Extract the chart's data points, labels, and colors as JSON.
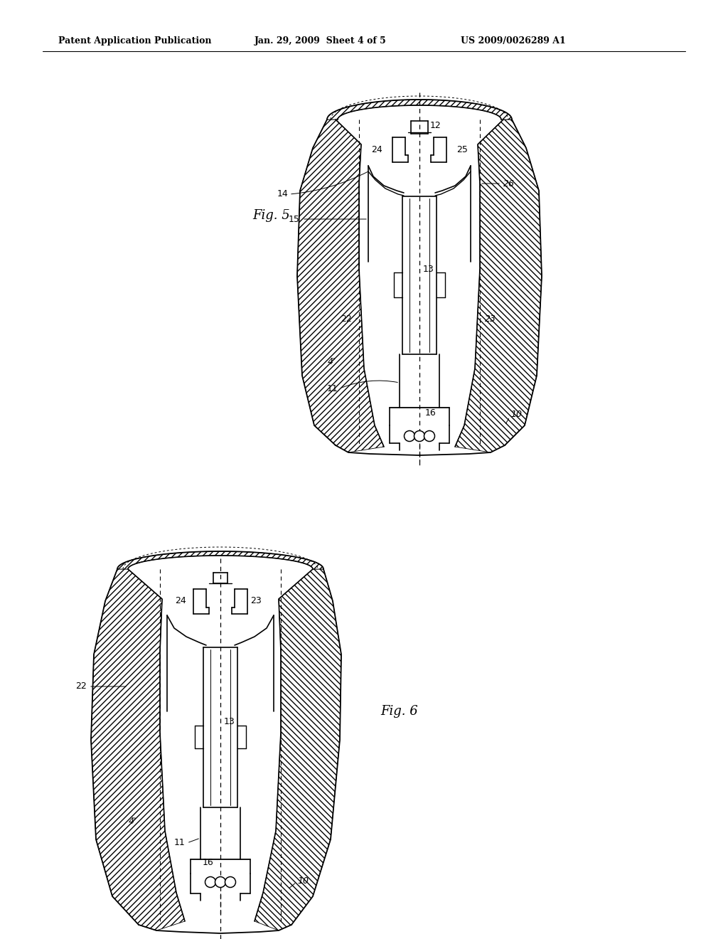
{
  "background_color": "#ffffff",
  "header_text": "Patent Application Publication",
  "header_date": "Jan. 29, 2009  Sheet 4 of 5",
  "header_patent": "US 2009/0026289 A1",
  "fig5_label": "Fig. 5",
  "fig6_label": "Fig. 6",
  "line_color": "#000000"
}
